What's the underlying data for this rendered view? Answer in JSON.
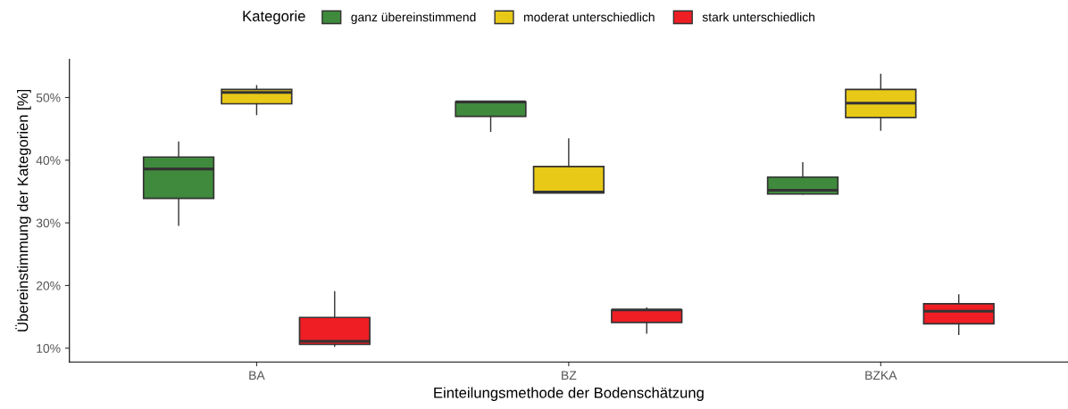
{
  "chart_data": {
    "type": "box",
    "xlabel": "Einteilungsmethode der Bodenschätzung",
    "ylabel": "Übereinstimmung der Kategorien [%]",
    "legend_title": "Kategorie",
    "legend": "top",
    "grid": false,
    "categories": [
      "BA",
      "BZ",
      "BZKA"
    ],
    "ylim": [
      7.8,
      56.1
    ],
    "yticks": [
      {
        "value": 10,
        "label": "10%"
      },
      {
        "value": 20,
        "label": "20%"
      },
      {
        "value": 30,
        "label": "30%"
      },
      {
        "value": 40,
        "label": "40%"
      },
      {
        "value": 50,
        "label": "50%"
      }
    ],
    "series": [
      {
        "name": "ganz übereinstimmend",
        "color": "#3f8a3c",
        "boxes": [
          {
            "low": 29.6,
            "q1": 33.9,
            "median": 38.6,
            "q3": 40.5,
            "high": 42.9
          },
          {
            "low": 44.6,
            "q1": 47.0,
            "median": 49.3,
            "q3": 49.3,
            "high": 49.3
          },
          {
            "low": 34.6,
            "q1": 34.6,
            "median": 35.2,
            "q3": 37.3,
            "high": 39.6
          }
        ]
      },
      {
        "name": "moderat unterschiedlich",
        "color": "#e8c917",
        "boxes": [
          {
            "low": 47.3,
            "q1": 49.0,
            "median": 50.8,
            "q3": 51.3,
            "high": 51.9
          },
          {
            "low": 34.8,
            "q1": 34.8,
            "median": 34.9,
            "q3": 39.0,
            "high": 43.4
          },
          {
            "low": 44.8,
            "q1": 46.8,
            "median": 49.1,
            "q3": 51.3,
            "high": 53.7
          }
        ]
      },
      {
        "name": "stark unterschiedlich",
        "color": "#ee1e24",
        "boxes": [
          {
            "low": 10.3,
            "q1": 10.6,
            "median": 11.1,
            "q3": 14.9,
            "high": 19.0
          },
          {
            "low": 12.4,
            "q1": 14.1,
            "median": 16.1,
            "q3": 16.1,
            "high": 16.4
          },
          {
            "low": 12.2,
            "q1": 13.9,
            "median": 15.9,
            "q3": 17.1,
            "high": 18.5
          }
        ]
      }
    ]
  }
}
